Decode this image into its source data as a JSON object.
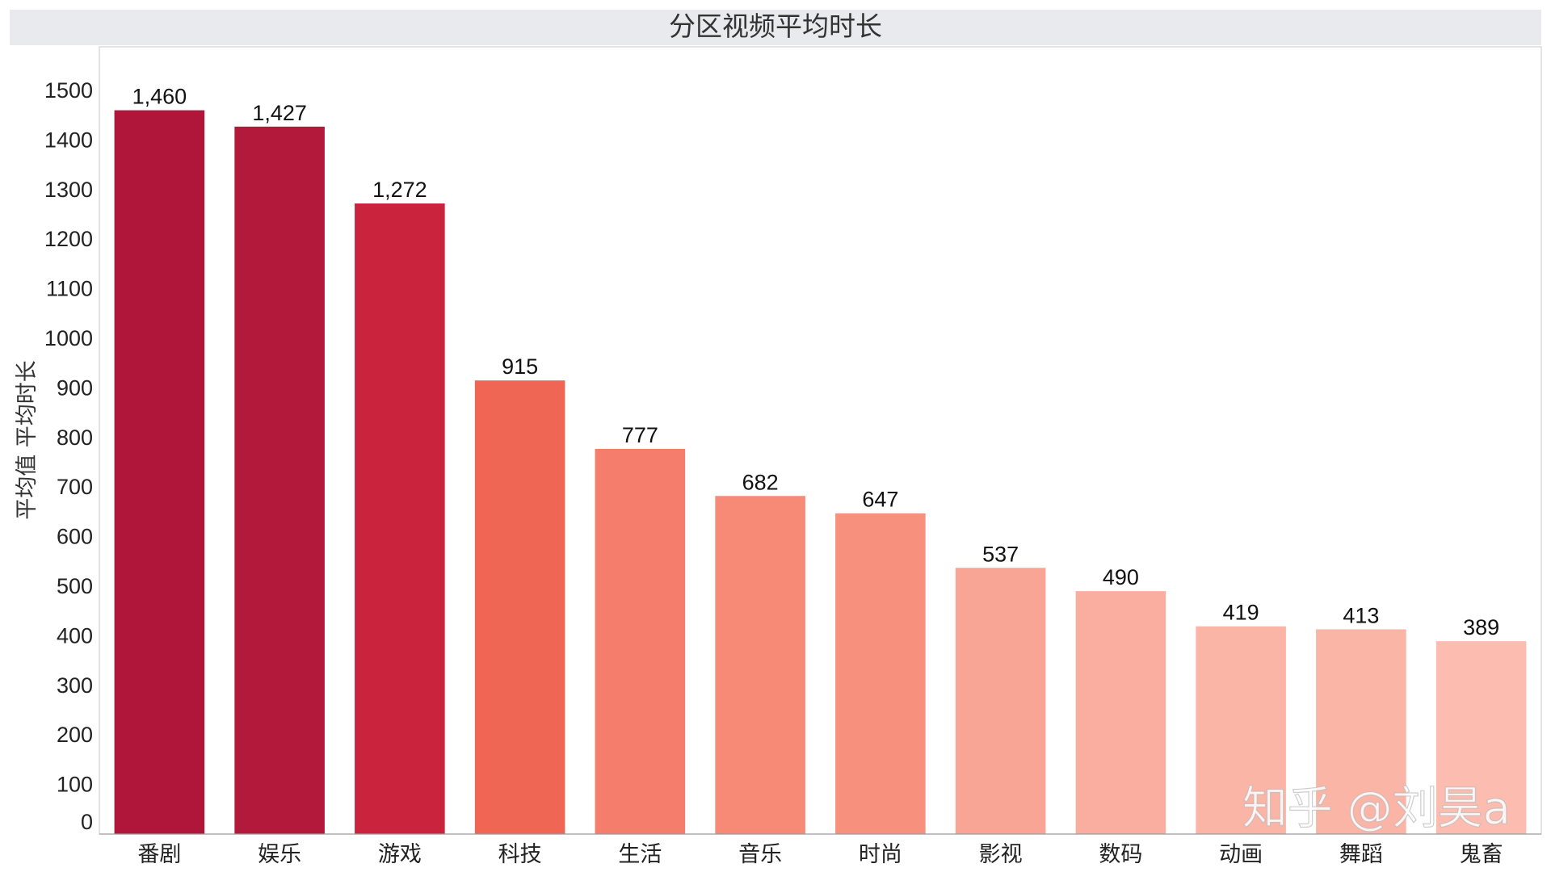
{
  "chart_data": {
    "type": "bar",
    "title": "分区视频平均时长",
    "xlabel": "",
    "ylabel": "平均值 平均时长",
    "categories": [
      "番剧",
      "娱乐",
      "游戏",
      "科技",
      "生活",
      "音乐",
      "时尚",
      "影视",
      "数码",
      "动画",
      "舞蹈",
      "鬼畜"
    ],
    "values": [
      1460,
      1427,
      1272,
      915,
      777,
      682,
      647,
      537,
      490,
      419,
      413,
      389
    ],
    "value_labels": [
      "1,460",
      "1,427",
      "1,272",
      "915",
      "777",
      "682",
      "647",
      "537",
      "490",
      "419",
      "413",
      "389"
    ],
    "colors": [
      "#b0163a",
      "#b3193a",
      "#c9233d",
      "#f06655",
      "#f47d6b",
      "#f68a77",
      "#f7917e",
      "#f9a595",
      "#faae9f",
      "#fbb5a7",
      "#fbb5a7",
      "#fcbcaf"
    ],
    "yticks": [
      0,
      100,
      200,
      300,
      400,
      500,
      600,
      700,
      800,
      900,
      1000,
      1100,
      1200,
      1300,
      1400,
      1500
    ],
    "ylim": [
      0,
      1500
    ],
    "grid": false,
    "legend": "none"
  },
  "watermark": "知乎 @刘昊a"
}
